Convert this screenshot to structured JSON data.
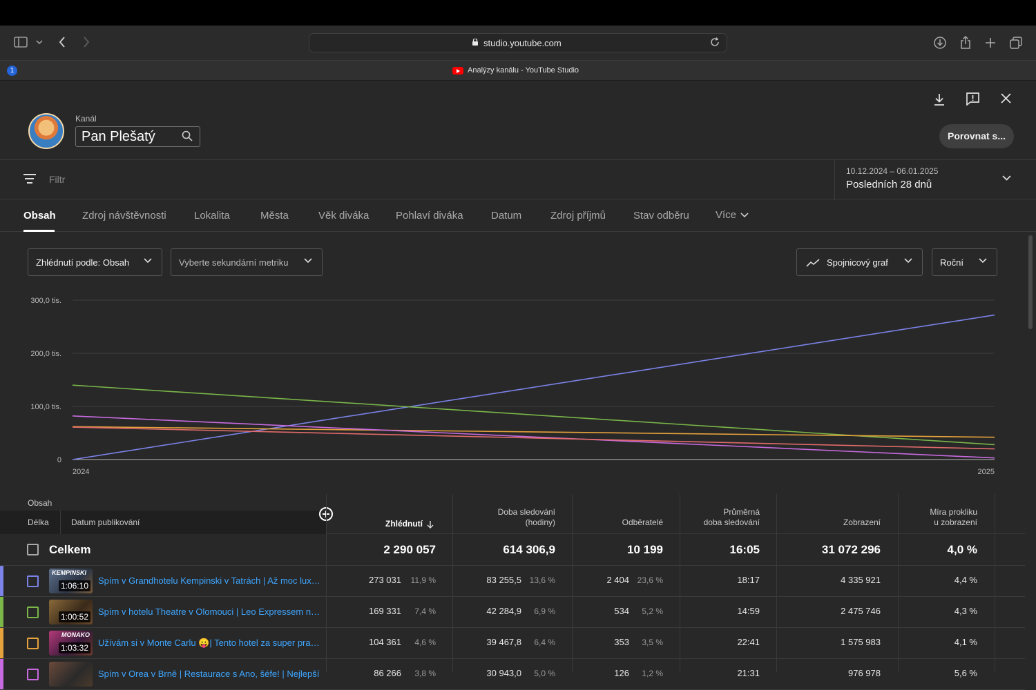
{
  "browser": {
    "url": "studio.youtube.com",
    "tab_title": "Analýzy kanálu - YouTube Studio",
    "extension_badge": "1"
  },
  "header": {
    "channel_label": "Kanál",
    "channel_name": "Pan Plešatý",
    "compare_button": "Porovnat s..."
  },
  "filter": {
    "placeholder": "Filtr",
    "date_range": "10.12.2024 – 06.01.2025",
    "period_label": "Posledních 28 dnů"
  },
  "tabs": [
    {
      "label": "Obsah",
      "active": true
    },
    {
      "label": "Zdroj návštěvnosti"
    },
    {
      "label": "Lokalita"
    },
    {
      "label": "Města"
    },
    {
      "label": "Věk diváka"
    },
    {
      "label": "Pohlaví diváka"
    },
    {
      "label": "Datum"
    },
    {
      "label": "Zdroj příjmů"
    },
    {
      "label": "Stav odběru"
    },
    {
      "label": "Více"
    }
  ],
  "controls": {
    "metric_dropdown": "Zhlédnutí podle: Obsah",
    "secondary_dropdown": "Vyberte sekundární metriku",
    "chart_type_dropdown": "Spojnicový graf",
    "interval_dropdown": "Roční"
  },
  "chart_data": {
    "type": "line",
    "x": [
      "2024",
      "2025"
    ],
    "y_ticks": [
      "0",
      "100,0 tis.",
      "200,0 tis.",
      "300,0 tis."
    ],
    "ylim": [
      0,
      300000
    ],
    "grid": true,
    "series": [
      {
        "color": "#7b82e8",
        "values": [
          0,
          272000
        ]
      },
      {
        "color": "#7ab648",
        "values": [
          140000,
          28000
        ]
      },
      {
        "color": "#e6a23c",
        "values": [
          62000,
          42000
        ]
      },
      {
        "color": "#c86ae0",
        "values": [
          82000,
          3000
        ]
      },
      {
        "color": "#e06a6a",
        "values": [
          61000,
          20000
        ]
      }
    ]
  },
  "table": {
    "group_label": "Obsah",
    "sub_headers": [
      "Délka",
      "Datum publikování"
    ],
    "columns": [
      {
        "line1": "",
        "line2": "Zhlédnutí",
        "sorted": true
      },
      {
        "line1": "Doba sledování",
        "line2": "(hodiny)"
      },
      {
        "line1": "",
        "line2": "Odběratelé"
      },
      {
        "line1": "Průměrná",
        "line2": "doba sledování"
      },
      {
        "line1": "",
        "line2": "Zobrazení"
      },
      {
        "line1": "Míra prokliku",
        "line2": "u zobrazení"
      }
    ],
    "total": {
      "label": "Celkem",
      "values": [
        "2 290 057",
        "614 306,9",
        "10 199",
        "16:05",
        "31 072 296",
        "4,0 %"
      ]
    },
    "rows": [
      {
        "color": "#7b82e8",
        "duration": "1:06:10",
        "thumb_text": "KEMPINSKI",
        "title": "Spím v Grandhotelu Kempinski v Tatrách | Až moc luxusní",
        "views": "273 031",
        "views_pct": "11,9 %",
        "watch": "83 255,5",
        "watch_pct": "13,6 %",
        "subs": "2 404",
        "subs_pct": "23,6 %",
        "avg": "18:17",
        "impr": "4 335 921",
        "ctr": "4,4 %"
      },
      {
        "color": "#7ab648",
        "duration": "1:00:52",
        "thumb_text": "",
        "title": "Spím v hotelu Theatre v Olomouci | Leo Expressem na výlet",
        "views": "169 331",
        "views_pct": "7,4 %",
        "watch": "42 284,9",
        "watch_pct": "6,9 %",
        "subs": "534",
        "subs_pct": "5,2 %",
        "avg": "14:59",
        "impr": "2 475 746",
        "ctr": "4,3 %"
      },
      {
        "color": "#e6a23c",
        "duration": "1:03:32",
        "thumb_text": "MONAKO",
        "title": "Užívám si v Monte Carlu 😛| Tento hotel za super prachy",
        "views": "104 361",
        "views_pct": "4,6 %",
        "watch": "39 467,8",
        "watch_pct": "6,4 %",
        "subs": "353",
        "subs_pct": "3,5 %",
        "avg": "22:41",
        "impr": "1 575 983",
        "ctr": "4,1 %"
      },
      {
        "color": "#c86ae0",
        "duration": "",
        "thumb_text": "",
        "title": "Spím v Orea v Brně | Restaurace s Ano, šéfe! | Nejlepší",
        "views": "86 266",
        "views_pct": "3,8 %",
        "watch": "30 943,0",
        "watch_pct": "5,0 %",
        "subs": "126",
        "subs_pct": "1,2 %",
        "avg": "21:31",
        "impr": "976 978",
        "ctr": "5,6 %"
      }
    ]
  }
}
